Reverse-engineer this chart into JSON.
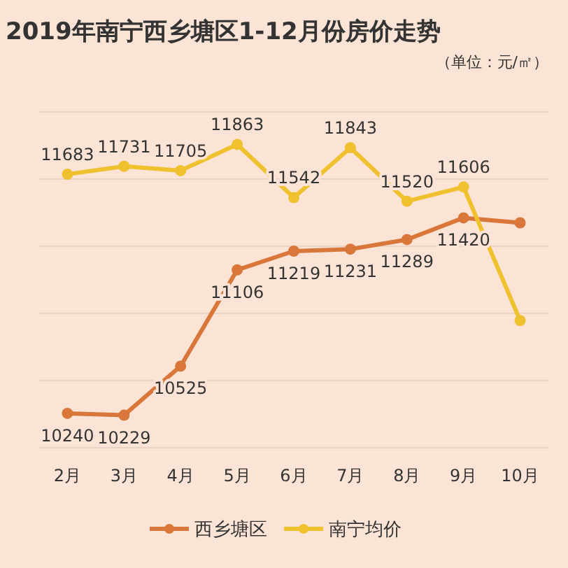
{
  "chart_data": {
    "type": "line",
    "title": "2019年南宁西乡塘区1-12月份房价走势",
    "subtitle": "（单位：元/㎡）",
    "categories": [
      "2月",
      "3月",
      "4月",
      "5月",
      "6月",
      "7月",
      "8月",
      "9月",
      "10月"
    ],
    "series": [
      {
        "name": "西乡塘区",
        "color": "#d9773a",
        "values": [
          10240,
          10229,
          10525,
          11106,
          11219,
          11231,
          11289,
          11420,
          11390
        ],
        "value_labels": [
          "10240",
          "10229",
          "10525",
          "11106",
          "11219",
          "11231",
          "11289",
          "11420",
          null
        ]
      },
      {
        "name": "南宁均价",
        "color": "#efc12e",
        "values": [
          11683,
          11731,
          11705,
          11863,
          11542,
          11843,
          11520,
          11606,
          10800
        ],
        "value_labels": [
          "11683",
          "11731",
          "11705",
          "11863",
          "11542",
          "11843",
          "11520",
          "11606",
          null
        ]
      }
    ],
    "grid": "y",
    "legend": "bottom",
    "marker": "circle",
    "line_style": "solid"
  }
}
